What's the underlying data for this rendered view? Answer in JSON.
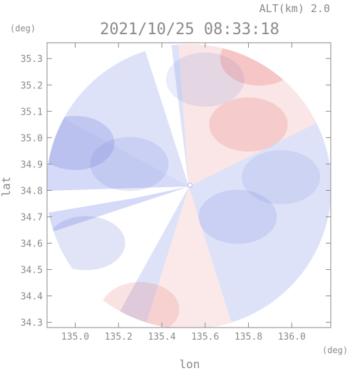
{
  "chart_data": {
    "type": "heatmap",
    "header": "ALT(km)  2.0",
    "title": "2021/10/25 08:33:18",
    "xlabel": "lon",
    "ylabel": "lat",
    "x_unit": "(deg)",
    "y_unit": "(deg)",
    "xlim": [
      134.87,
      136.18
    ],
    "ylim": [
      34.28,
      35.36
    ],
    "x_ticks": [
      135.0,
      135.2,
      135.4,
      135.6,
      135.8,
      136.0
    ],
    "x_tick_labels": [
      "135.0",
      "135.2",
      "135.4",
      "135.6",
      "135.8",
      "136.0"
    ],
    "y_ticks": [
      34.3,
      34.4,
      34.5,
      34.6,
      34.7,
      34.8,
      34.9,
      35.0,
      35.1,
      35.2,
      35.3
    ],
    "y_tick_labels": [
      "34.3",
      "34.4",
      "34.5",
      "34.6",
      "34.7",
      "34.8",
      "34.9",
      "35.0",
      "35.1",
      "35.2",
      "35.3"
    ],
    "radar_center": {
      "lon": 135.53,
      "lat": 34.82
    },
    "colors": {
      "approaching": "#d0d8fa",
      "receding": "#fbe0e0",
      "strong_approaching": "#6a78d8",
      "strong_receding": "#e86060",
      "axis": "#8a8a8a"
    },
    "regions": [
      {
        "sign": "approaching",
        "lon": 135.0,
        "lat": 34.98,
        "level": 0.55
      },
      {
        "sign": "approaching",
        "lon": 135.25,
        "lat": 34.9,
        "level": 0.35
      },
      {
        "sign": "approaching",
        "lon": 135.05,
        "lat": 34.6,
        "level": 0.45
      },
      {
        "sign": "approaching",
        "lon": 135.75,
        "lat": 34.7,
        "level": 0.35
      },
      {
        "sign": "approaching",
        "lon": 135.95,
        "lat": 34.85,
        "level": 0.3
      },
      {
        "sign": "approaching",
        "lon": 135.6,
        "lat": 35.22,
        "level": 0.3
      },
      {
        "sign": "receding",
        "lon": 135.8,
        "lat": 35.05,
        "level": 0.45
      },
      {
        "sign": "receding",
        "lon": 135.3,
        "lat": 34.35,
        "level": 0.4
      },
      {
        "sign": "receding",
        "lon": 135.85,
        "lat": 35.3,
        "level": 0.5
      }
    ]
  }
}
